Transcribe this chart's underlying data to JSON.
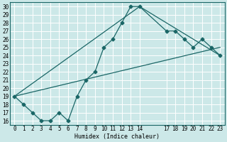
{
  "xlabel": "Humidex (Indice chaleur)",
  "bg_color": "#cce8e8",
  "grid_color": "#ffffff",
  "line_color": "#1a6666",
  "xlim": [
    -0.5,
    23.5
  ],
  "ylim": [
    15.5,
    30.5
  ],
  "xtick_positions": [
    0,
    1,
    2,
    3,
    4,
    5,
    6,
    7,
    8,
    9,
    10,
    11,
    12,
    13,
    14,
    17,
    18,
    19,
    20,
    21,
    22,
    23
  ],
  "xtick_labels": [
    "0",
    "1",
    "2",
    "3",
    "4",
    "5",
    "6",
    "7",
    "8",
    "9",
    "10",
    "11",
    "12",
    "13",
    "14",
    "17",
    "18",
    "19",
    "20",
    "21",
    "22",
    "23"
  ],
  "yticks": [
    16,
    17,
    18,
    19,
    20,
    21,
    22,
    23,
    24,
    25,
    26,
    27,
    28,
    29,
    30
  ],
  "line1_x": [
    0,
    1,
    2,
    3,
    4,
    5,
    6,
    7,
    8,
    9,
    10,
    11,
    12,
    13,
    14,
    17,
    18,
    19,
    20,
    21,
    22,
    23
  ],
  "line1_y": [
    19,
    18,
    17,
    16,
    16,
    17,
    16,
    19,
    21,
    22,
    25,
    26,
    28,
    30,
    30,
    27,
    27,
    26,
    25,
    26,
    25,
    24
  ],
  "line2_x": [
    0,
    14,
    23
  ],
  "line2_y": [
    19,
    30,
    24
  ],
  "line3_x": [
    0,
    23
  ],
  "line3_y": [
    19,
    25
  ],
  "marker_size": 2.5,
  "line_width": 0.9,
  "tick_fontsize": 5.5,
  "xlabel_fontsize": 6.0
}
